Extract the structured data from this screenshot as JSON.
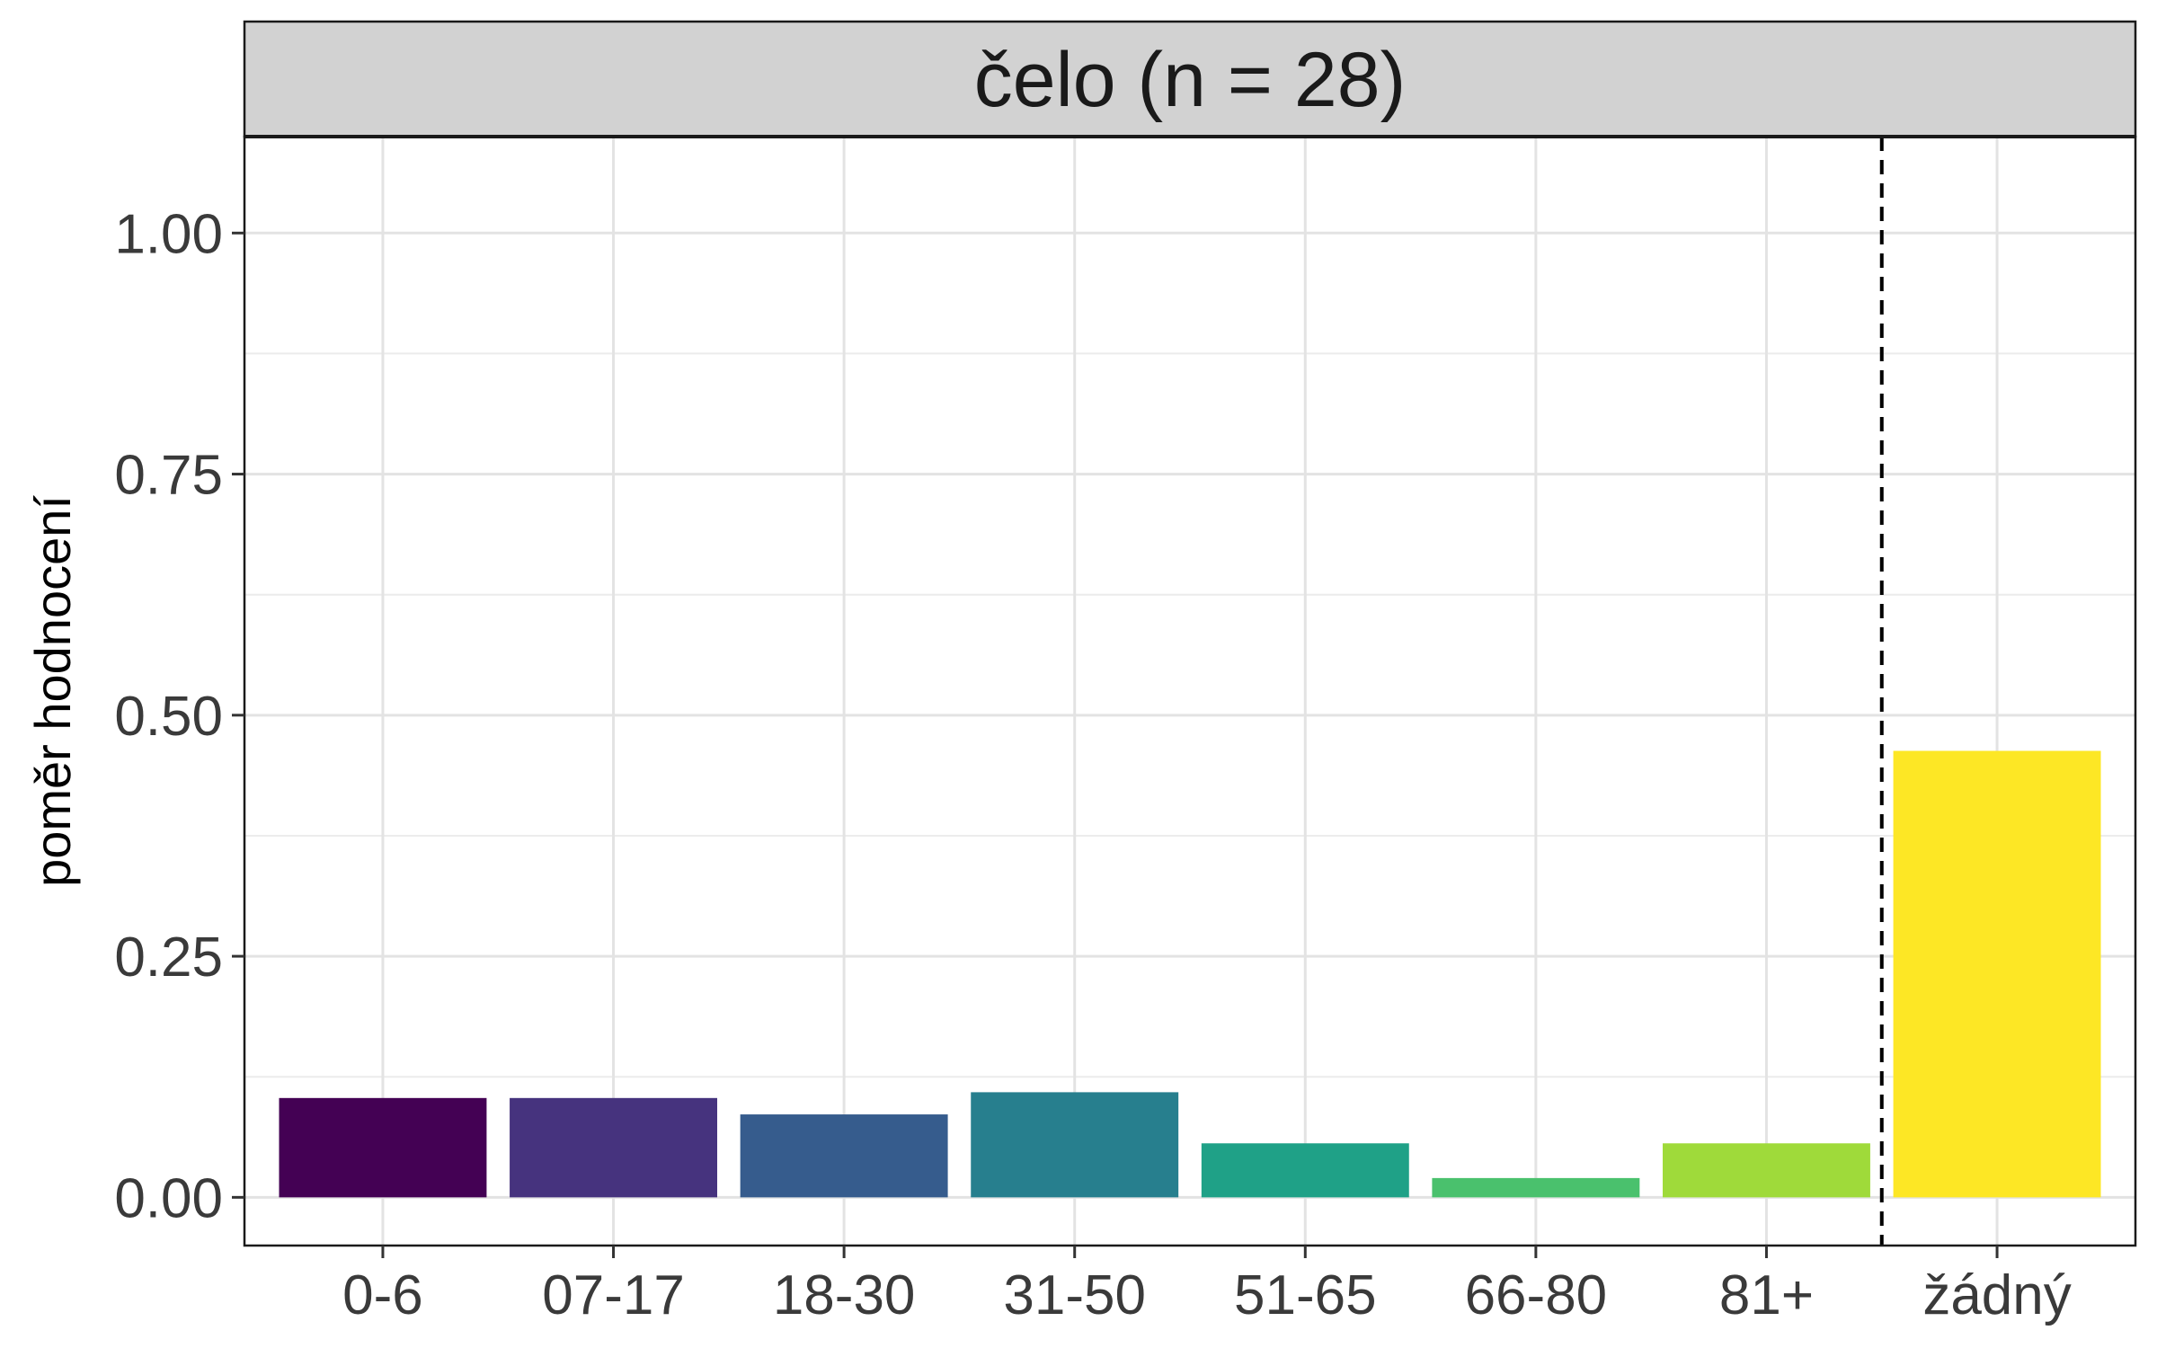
{
  "chart_data": {
    "type": "bar",
    "title": "čelo (n = 28)",
    "xlabel": "",
    "ylabel": "poměr hodnocení",
    "categories": [
      "0-6",
      "07-17",
      "18-30",
      "31-50",
      "51-65",
      "66-80",
      "81+",
      "žádný"
    ],
    "values": [
      0.103,
      0.103,
      0.086,
      0.109,
      0.056,
      0.02,
      0.056,
      0.463
    ],
    "colors": [
      "#440154",
      "#46337E",
      "#365C8D",
      "#277F8E",
      "#1FA187",
      "#4AC16D",
      "#9FDA3A",
      "#FDE725"
    ],
    "ylim": [
      -0.05,
      1.1
    ],
    "yticks": [
      0,
      0.25,
      0.5,
      0.75,
      1
    ],
    "ytick_labels": [
      "0.00",
      "0.25",
      "0.50",
      "0.75",
      "1.00"
    ],
    "reference_line": {
      "between": [
        "81+",
        "žádný"
      ],
      "style": "dashed"
    },
    "grid": true
  }
}
